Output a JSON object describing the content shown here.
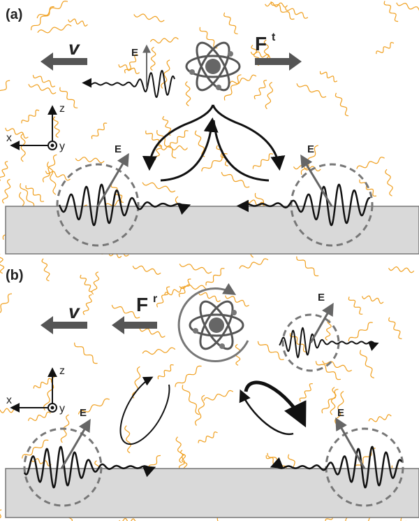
{
  "panels": [
    {
      "label": "(a)",
      "velocity": "v",
      "force": {
        "symbol": "F",
        "superscript": "t"
      },
      "field_labels": [
        "E",
        "E",
        "E"
      ],
      "axes": {
        "z": "z",
        "x": "x",
        "y": "y"
      }
    },
    {
      "label": "(b)",
      "velocity": "v",
      "force": {
        "symbol": "F",
        "superscript": "r"
      },
      "field_labels": [
        "E",
        "E",
        "E"
      ],
      "axes": {
        "z": "z",
        "x": "x",
        "y": "y"
      }
    }
  ]
}
